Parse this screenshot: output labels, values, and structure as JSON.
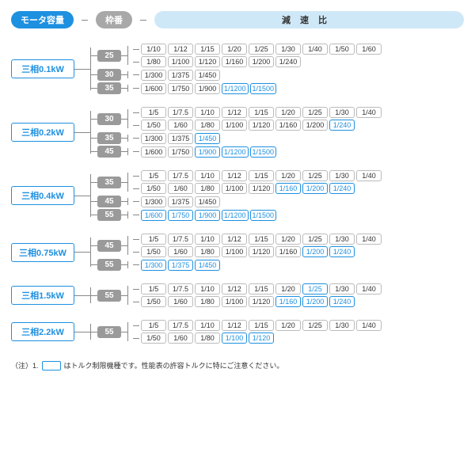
{
  "header": {
    "motor_cap": "モータ容量",
    "frame_no": "枠番",
    "ratio": "減速比"
  },
  "colors": {
    "blue": "#1e90e0",
    "gray": "#9a9a9a",
    "lightblue": "#cfe8f7",
    "line": "#888888",
    "text": "#333333",
    "bg": "#ffffff"
  },
  "footnote": {
    "prefix": "（注）1.",
    "text": "はトルク制限機種です。性能表の許容トルクに特にご注意ください。"
  },
  "groups": [
    {
      "motor": "三相0.1kW",
      "frames": [
        {
          "frame": "25",
          "rows": [
            [
              {
                "v": "1/10"
              },
              {
                "v": "1/12"
              },
              {
                "v": "1/15"
              },
              {
                "v": "1/20"
              },
              {
                "v": "1/25"
              },
              {
                "v": "1/30"
              },
              {
                "v": "1/40"
              },
              {
                "v": "1/50"
              },
              {
                "v": "1/60"
              }
            ],
            [
              {
                "v": "1/80"
              },
              {
                "v": "1/100"
              },
              {
                "v": "1/120"
              },
              {
                "v": "1/160"
              },
              {
                "v": "1/200"
              },
              {
                "v": "1/240"
              }
            ]
          ]
        },
        {
          "frame": "30",
          "rows": [
            [
              {
                "v": "1/300"
              },
              {
                "v": "1/375"
              },
              {
                "v": "1/450"
              }
            ]
          ]
        },
        {
          "frame": "35",
          "rows": [
            [
              {
                "v": "1/600"
              },
              {
                "v": "1/750"
              },
              {
                "v": "1/900"
              },
              {
                "v": "1/1200",
                "h": true
              },
              {
                "v": "1/1500",
                "h": true
              }
            ]
          ]
        }
      ]
    },
    {
      "motor": "三相0.2kW",
      "frames": [
        {
          "frame": "30",
          "rows": [
            [
              {
                "v": "1/5"
              },
              {
                "v": "1/7.5"
              },
              {
                "v": "1/10"
              },
              {
                "v": "1/12"
              },
              {
                "v": "1/15"
              },
              {
                "v": "1/20"
              },
              {
                "v": "1/25"
              },
              {
                "v": "1/30"
              },
              {
                "v": "1/40"
              }
            ],
            [
              {
                "v": "1/50"
              },
              {
                "v": "1/60"
              },
              {
                "v": "1/80"
              },
              {
                "v": "1/100"
              },
              {
                "v": "1/120"
              },
              {
                "v": "1/160"
              },
              {
                "v": "1/200"
              },
              {
                "v": "1/240",
                "h": true
              }
            ]
          ]
        },
        {
          "frame": "35",
          "rows": [
            [
              {
                "v": "1/300"
              },
              {
                "v": "1/375"
              },
              {
                "v": "1/450",
                "h": true
              }
            ]
          ]
        },
        {
          "frame": "45",
          "rows": [
            [
              {
                "v": "1/600"
              },
              {
                "v": "1/750"
              },
              {
                "v": "1/900",
                "h": true
              },
              {
                "v": "1/1200",
                "h": true
              },
              {
                "v": "1/1500",
                "h": true
              }
            ]
          ]
        }
      ]
    },
    {
      "motor": "三相0.4kW",
      "frames": [
        {
          "frame": "35",
          "rows": [
            [
              {
                "v": "1/5"
              },
              {
                "v": "1/7.5"
              },
              {
                "v": "1/10"
              },
              {
                "v": "1/12"
              },
              {
                "v": "1/15"
              },
              {
                "v": "1/20"
              },
              {
                "v": "1/25"
              },
              {
                "v": "1/30"
              },
              {
                "v": "1/40"
              }
            ],
            [
              {
                "v": "1/50"
              },
              {
                "v": "1/60"
              },
              {
                "v": "1/80"
              },
              {
                "v": "1/100"
              },
              {
                "v": "1/120"
              },
              {
                "v": "1/160",
                "h": true
              },
              {
                "v": "1/200",
                "h": true
              },
              {
                "v": "1/240",
                "h": true
              }
            ]
          ]
        },
        {
          "frame": "45",
          "rows": [
            [
              {
                "v": "1/300"
              },
              {
                "v": "1/375"
              },
              {
                "v": "1/450"
              }
            ]
          ]
        },
        {
          "frame": "55",
          "rows": [
            [
              {
                "v": "1/600",
                "h": true
              },
              {
                "v": "1/750",
                "h": true
              },
              {
                "v": "1/900",
                "h": true
              },
              {
                "v": "1/1200",
                "h": true
              },
              {
                "v": "1/1500",
                "h": true
              }
            ]
          ]
        }
      ]
    },
    {
      "motor": "三相0.75kW",
      "frames": [
        {
          "frame": "45",
          "rows": [
            [
              {
                "v": "1/5"
              },
              {
                "v": "1/7.5"
              },
              {
                "v": "1/10"
              },
              {
                "v": "1/12"
              },
              {
                "v": "1/15"
              },
              {
                "v": "1/20"
              },
              {
                "v": "1/25"
              },
              {
                "v": "1/30"
              },
              {
                "v": "1/40"
              }
            ],
            [
              {
                "v": "1/50"
              },
              {
                "v": "1/60"
              },
              {
                "v": "1/80"
              },
              {
                "v": "1/100"
              },
              {
                "v": "1/120"
              },
              {
                "v": "1/160"
              },
              {
                "v": "1/200",
                "h": true
              },
              {
                "v": "1/240",
                "h": true
              }
            ]
          ]
        },
        {
          "frame": "55",
          "rows": [
            [
              {
                "v": "1/300",
                "h": true
              },
              {
                "v": "1/375",
                "h": true
              },
              {
                "v": "1/450",
                "h": true
              }
            ]
          ]
        }
      ]
    },
    {
      "motor": "三相1.5kW",
      "frames": [
        {
          "frame": "55",
          "rows": [
            [
              {
                "v": "1/5"
              },
              {
                "v": "1/7.5"
              },
              {
                "v": "1/10"
              },
              {
                "v": "1/12"
              },
              {
                "v": "1/15"
              },
              {
                "v": "1/20"
              },
              {
                "v": "1/25",
                "h": true
              },
              {
                "v": "1/30"
              },
              {
                "v": "1/40"
              }
            ],
            [
              {
                "v": "1/50"
              },
              {
                "v": "1/60"
              },
              {
                "v": "1/80"
              },
              {
                "v": "1/100"
              },
              {
                "v": "1/120"
              },
              {
                "v": "1/160",
                "h": true
              },
              {
                "v": "1/200",
                "h": true
              },
              {
                "v": "1/240",
                "h": true
              }
            ]
          ]
        }
      ]
    },
    {
      "motor": "三相2.2kW",
      "frames": [
        {
          "frame": "55",
          "rows": [
            [
              {
                "v": "1/5"
              },
              {
                "v": "1/7.5"
              },
              {
                "v": "1/10"
              },
              {
                "v": "1/12"
              },
              {
                "v": "1/15"
              },
              {
                "v": "1/20"
              },
              {
                "v": "1/25"
              },
              {
                "v": "1/30"
              },
              {
                "v": "1/40"
              }
            ],
            [
              {
                "v": "1/50"
              },
              {
                "v": "1/60"
              },
              {
                "v": "1/80"
              },
              {
                "v": "1/100",
                "h": true
              },
              {
                "v": "1/120",
                "h": true
              }
            ]
          ]
        }
      ]
    }
  ]
}
